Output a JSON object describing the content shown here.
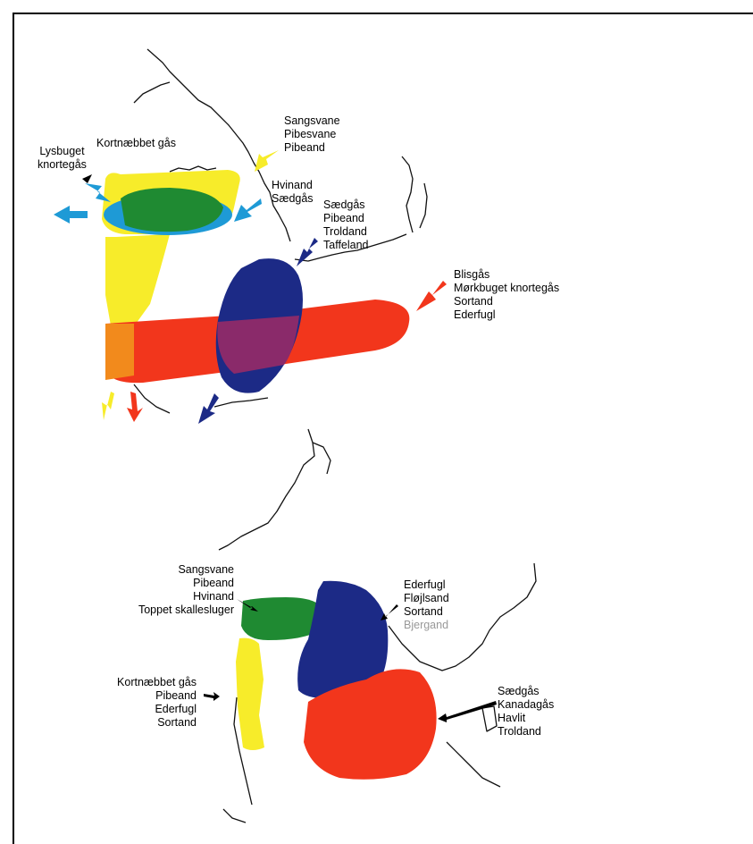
{
  "map_top": {
    "labels": {
      "lysbuget": [
        "Lysbuget",
        "knortegås"
      ],
      "kortnaebbet": [
        "Kortnæbbet gås"
      ],
      "sangsvane": [
        "Sangsvane",
        "Pibesvane",
        "Pibeand"
      ],
      "hvinand": [
        "Hvinand",
        "Sædgås"
      ],
      "saedgaas": [
        "Sædgås",
        "Pibeand",
        "Troldand",
        "Taffeland"
      ],
      "blisgaas": [
        "Blisgås",
        "Mørkbuget knortegås",
        "Sortand",
        "Ederfugl"
      ]
    },
    "colors": {
      "north_blue": "#1e9ad6",
      "north_green": "#1f8a32",
      "west_yellow": "#f7ec2a",
      "south_red": "#f2361c",
      "south_orange": "#f28a1c",
      "east_navy": "#1c2a86",
      "overlap_purple": "#8a2a6a",
      "arrow_black": "#000000"
    }
  },
  "map_bottom": {
    "labels": {
      "nw": [
        "Sangsvane",
        "Pibeand",
        "Hvinand",
        "Toppet skallesluger"
      ],
      "west": [
        "Kortnæbbet gås",
        "Pibeand",
        "Ederfugl",
        "Sortand"
      ],
      "ne": [
        "Ederfugl",
        "Fløjlsand",
        "Sortand",
        "Bjergand"
      ],
      "se": [
        "Sædgås",
        "Kanadagås",
        "Havlit",
        "Troldand"
      ]
    }
  }
}
